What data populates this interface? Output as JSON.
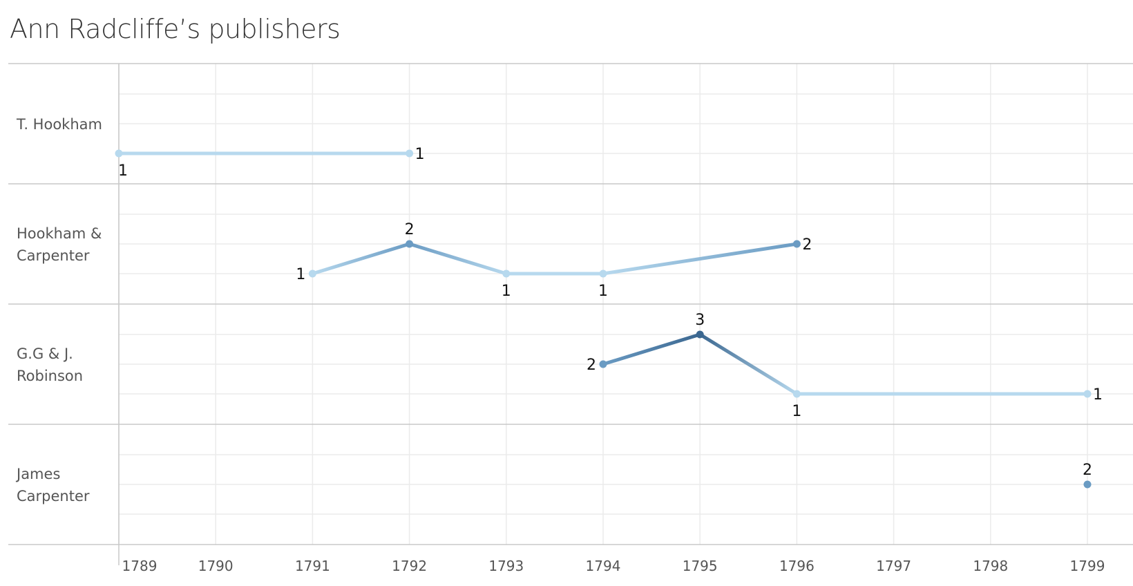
{
  "title": "Ann Radcliffe’s publishers",
  "chart_data": {
    "type": "line",
    "title": "Ann Radcliffe’s publishers",
    "x_ticks": [
      "1789",
      "1790",
      "1791",
      "1792",
      "1793",
      "1794",
      "1795",
      "1796",
      "1797",
      "1798",
      "1799"
    ],
    "xlim": [
      1789,
      1799
    ],
    "grid": true,
    "rows": [
      {
        "label_lines": [
          "T. Hookham"
        ],
        "segments": [
          [
            {
              "x": 1789,
              "y": 1
            },
            {
              "x": 1792,
              "y": 1
            }
          ]
        ]
      },
      {
        "label_lines": [
          "Hookham &",
          "Carpenter"
        ],
        "segments": [
          [
            {
              "x": 1791,
              "y": 1
            },
            {
              "x": 1792,
              "y": 2
            },
            {
              "x": 1793,
              "y": 1
            },
            {
              "x": 1794,
              "y": 1
            },
            {
              "x": 1796,
              "y": 2
            }
          ]
        ]
      },
      {
        "label_lines": [
          "G.G & J.",
          "Robinson"
        ],
        "segments": [
          [
            {
              "x": 1794,
              "y": 2
            },
            {
              "x": 1795,
              "y": 3
            },
            {
              "x": 1796,
              "y": 1
            },
            {
              "x": 1799,
              "y": 1
            }
          ]
        ]
      },
      {
        "label_lines": [
          "James",
          "Carpenter"
        ],
        "segments": [
          [
            {
              "x": 1799,
              "y": 2
            }
          ]
        ]
      }
    ],
    "color_scale": {
      "1": "#b7d9ee",
      "2": "#6a9bc3",
      "3": "#3b6790"
    },
    "colors": {
      "grid": "#ebebeb",
      "row_border": "#c8c8c8",
      "axis": "#c8c8c8"
    }
  }
}
